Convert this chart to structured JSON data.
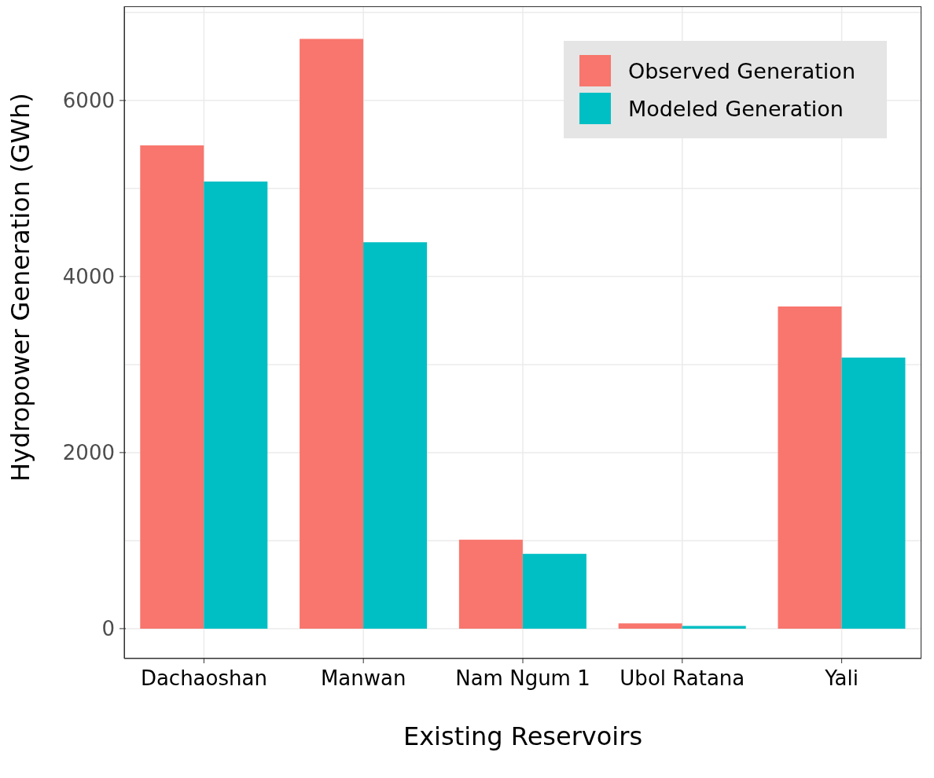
{
  "chart_data": {
    "type": "bar",
    "xlabel": "Existing Reservoirs",
    "ylabel": "Hydropower Generation (GWh)",
    "categories": [
      "Dachaoshan",
      "Manwan",
      "Nam Ngum 1",
      "Ubol Ratana",
      "Yali"
    ],
    "series": [
      {
        "name": "Observed Generation",
        "color": "#f8766d",
        "values": [
          5490,
          6700,
          1010,
          60,
          3660
        ]
      },
      {
        "name": "Modeled Generation",
        "color": "#00bfc4",
        "values": [
          5080,
          4390,
          850,
          30,
          3080
        ]
      }
    ],
    "ylim": [
      -340,
      7070
    ],
    "yticks": [
      0,
      {
        "value": 1000,
        "label": null
      },
      2000,
      {
        "value": 3000,
        "label": null
      },
      4000,
      {
        "value": 5000,
        "label": null
      },
      6000,
      {
        "value": 7000,
        "label": null
      }
    ],
    "grid": true,
    "legend": "top right"
  }
}
